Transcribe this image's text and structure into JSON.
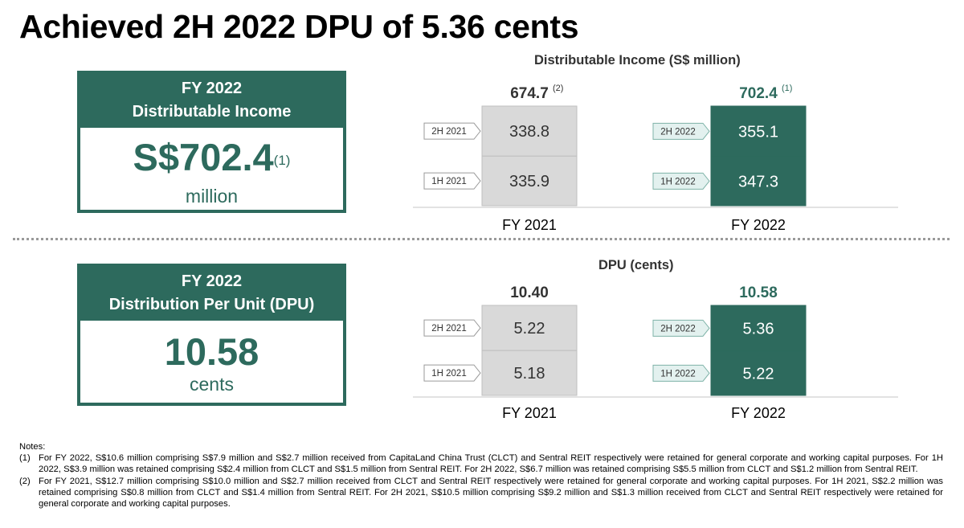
{
  "title": "Achieved 2H 2022 DPU of 5.36 cents",
  "kpi_income": {
    "line1": "FY 2022",
    "line2": "Distributable Income",
    "value": "S$702.4",
    "sup": "(1)",
    "unit": "million"
  },
  "kpi_dpu": {
    "line1": "FY 2022",
    "line2": "Distribution Per Unit (DPU)",
    "value": "10.58",
    "unit": "cents"
  },
  "colors": {
    "accent": "#2d6a5d",
    "grey_bar": "#d9d9d9",
    "grey_border": "#bfbfbf",
    "tag_fill": "#e3f1ef"
  },
  "chart_data": [
    {
      "type": "bar",
      "stacked": true,
      "title": "Distributable Income (S$ million)",
      "categories": [
        "FY 2021",
        "FY 2022"
      ],
      "series": [
        {
          "name": "1H",
          "labels": [
            "1H 2021",
            "1H 2022"
          ],
          "values": [
            335.9,
            347.3
          ]
        },
        {
          "name": "2H",
          "labels": [
            "2H 2021",
            "2H 2022"
          ],
          "values": [
            338.8,
            355.1
          ]
        }
      ],
      "totals": [
        "674.7",
        "702.4"
      ],
      "total_notes": [
        "(2)",
        "(1)"
      ],
      "value_labels": [
        [
          "335.9",
          "338.8"
        ],
        [
          "347.3",
          "355.1"
        ]
      ]
    },
    {
      "type": "bar",
      "stacked": true,
      "title": "DPU (cents)",
      "categories": [
        "FY 2021",
        "FY 2022"
      ],
      "series": [
        {
          "name": "1H",
          "labels": [
            "1H 2021",
            "1H 2022"
          ],
          "values": [
            5.18,
            5.22
          ]
        },
        {
          "name": "2H",
          "labels": [
            "2H 2021",
            "2H 2022"
          ],
          "values": [
            5.22,
            5.36
          ]
        }
      ],
      "totals": [
        "10.40",
        "10.58"
      ],
      "total_notes": [
        "",
        ""
      ],
      "value_labels": [
        [
          "5.18",
          "5.22"
        ],
        [
          "5.22",
          "5.36"
        ]
      ]
    }
  ],
  "notes": {
    "heading": "Notes:",
    "items": [
      {
        "num": "(1)",
        "text": "For FY 2022, S$10.6 million comprising S$7.9 million and S$2.7 million received from CapitaLand China Trust (CLCT) and Sentral REIT respectively were retained for general corporate and working capital purposes. For 1H 2022, S$3.9 million was retained comprising S$2.4 million from CLCT and S$1.5 million from Sentral REIT. For 2H 2022, S$6.7 million was retained comprising S$5.5 million from CLCT and S$1.2 million from Sentral REIT."
      },
      {
        "num": "(2)",
        "text": "For FY 2021, S$12.7 million comprising S$10.0 million and S$2.7 million received from CLCT and Sentral REIT respectively were retained for general corporate and working capital purposes. For 1H 2021, S$2.2 million was retained comprising S$0.8 million from CLCT and S$1.4 million from Sentral REIT. For 2H 2021, S$10.5 million comprising S$9.2 million and S$1.3 million received from CLCT and Sentral REIT respectively were retained for general corporate and working capital purposes."
      }
    ]
  }
}
